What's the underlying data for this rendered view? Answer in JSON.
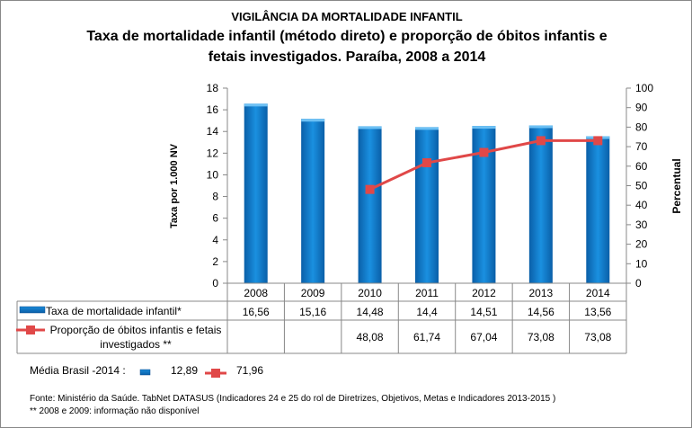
{
  "header": {
    "supertitle": "VIGILÂNCIA DA MORTALIDADE INFANTIL",
    "title_line1": "Taxa de mortalidade infantil (método direto) e proporção de óbitos infantis e",
    "title_line2": "fetais investigados. Paraíba, 2008 a 2014"
  },
  "chart_data": {
    "type": "bar+line",
    "categories": [
      "2008",
      "2009",
      "2010",
      "2011",
      "2012",
      "2013",
      "2014"
    ],
    "series": [
      {
        "name": "Taxa de mortalidade infantil*",
        "type": "bar",
        "axis": "left",
        "values": [
          16.56,
          15.16,
          14.48,
          14.4,
          14.51,
          14.56,
          13.56
        ],
        "labels": [
          "16,56",
          "15,16",
          "14,48",
          "14,4",
          "14,51",
          "14,56",
          "13,56"
        ]
      },
      {
        "name": "Proporção de óbitos infantis e fetais investigados **",
        "name_line1": "Proporção de óbitos infantis e fetais",
        "name_line2": "investigados **",
        "type": "line",
        "axis": "right",
        "values": [
          null,
          null,
          48.08,
          61.74,
          67.04,
          73.08,
          73.08
        ],
        "labels": [
          "",
          "",
          "48,08",
          "61,74",
          "67,04",
          "73,08",
          "73,08"
        ]
      }
    ],
    "ylabel": "Taxa  por 1.000 NV",
    "y2label": "Percentual",
    "ylim": [
      0,
      18
    ],
    "yticks": [
      0,
      2,
      4,
      6,
      8,
      10,
      12,
      14,
      16,
      18
    ],
    "y2lim": [
      0,
      100
    ],
    "y2ticks": [
      0,
      10,
      20,
      30,
      40,
      50,
      60,
      70,
      80,
      90,
      100
    ],
    "legend": "data-table",
    "colors": {
      "bar": "#0a78c8",
      "line": "#e04848"
    }
  },
  "media": {
    "label": "Média Brasil -2014 :",
    "bar_value": "12,89",
    "line_value": "71,96"
  },
  "footer": {
    "source": "Fonte: Ministério da Saúde. TabNet DATASUS (Indicadores  24 e 25 do rol de Diretrizes, Objetivos, Metas e Indicadores 2013-2015 )",
    "note": "** 2008 e 2009: informação não disponível"
  }
}
